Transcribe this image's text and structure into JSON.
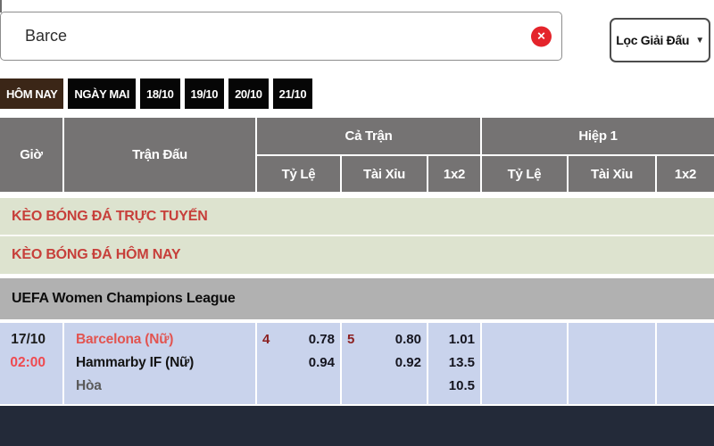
{
  "search": {
    "input_value": "Barce",
    "clear_icon": "✕",
    "filter_label": "Lọc Giải Đấu",
    "dropdown_icon": "▼"
  },
  "date_tabs": [
    {
      "label": "HÔM NAY",
      "active": true
    },
    {
      "label": "NGÀY MAI",
      "active": false
    },
    {
      "label": "18/10",
      "active": false
    },
    {
      "label": "19/10",
      "active": false
    },
    {
      "label": "20/10",
      "active": false
    },
    {
      "label": "21/10",
      "active": false
    }
  ],
  "odds_table": {
    "header": {
      "time": "Giờ",
      "match": "Trận Đấu",
      "full_time": "Cả Trận",
      "first_half": "Hiệp 1",
      "ft_sub": {
        "handicap": "Tỷ Lệ",
        "over_under": "Tài Xỉu",
        "one_x_two": "1x2"
      },
      "h1_sub": {
        "handicap": "Tỷ Lệ",
        "over_under": "Tài Xỉu",
        "one_x_two": "1x2"
      }
    },
    "section_links": {
      "live": "KÈO BÓNG ĐÁ TRỰC TUYẾN",
      "today": "KÈO BÓNG ĐÁ HÔM NAY"
    },
    "league_name": "UEFA Women Champions League",
    "match": {
      "date": "17/10",
      "time": "02:00",
      "home_team": "Barcelona (Nữ)",
      "away_team": "Hammarby IF (Nữ)",
      "draw_label": "Hòa",
      "full_time": {
        "handicap_line": "4",
        "handicap_home": "0.78",
        "handicap_away": "0.94",
        "ou_line": "5",
        "ou_over": "0.80",
        "ou_under": "0.92",
        "win_home": "1.01",
        "win_away": "13.5",
        "win_draw": "10.5"
      },
      "first_half": {
        "empty": ""
      }
    }
  },
  "colors": {
    "accent_red": "#c73f3a",
    "clear_button_red": "#e4242b",
    "tab_active_brown": "#3b2617",
    "tab_black": "#060606",
    "header_gray": "#757373",
    "league_gray": "#b1b1b1",
    "section_green": "#dde3cf",
    "row_blue": "#c9d3ec",
    "footer_navy": "#232a39",
    "odds_line_red": "#8b1f1f",
    "time_red": "#ef4a50",
    "home_team_red": "#e25450"
  }
}
